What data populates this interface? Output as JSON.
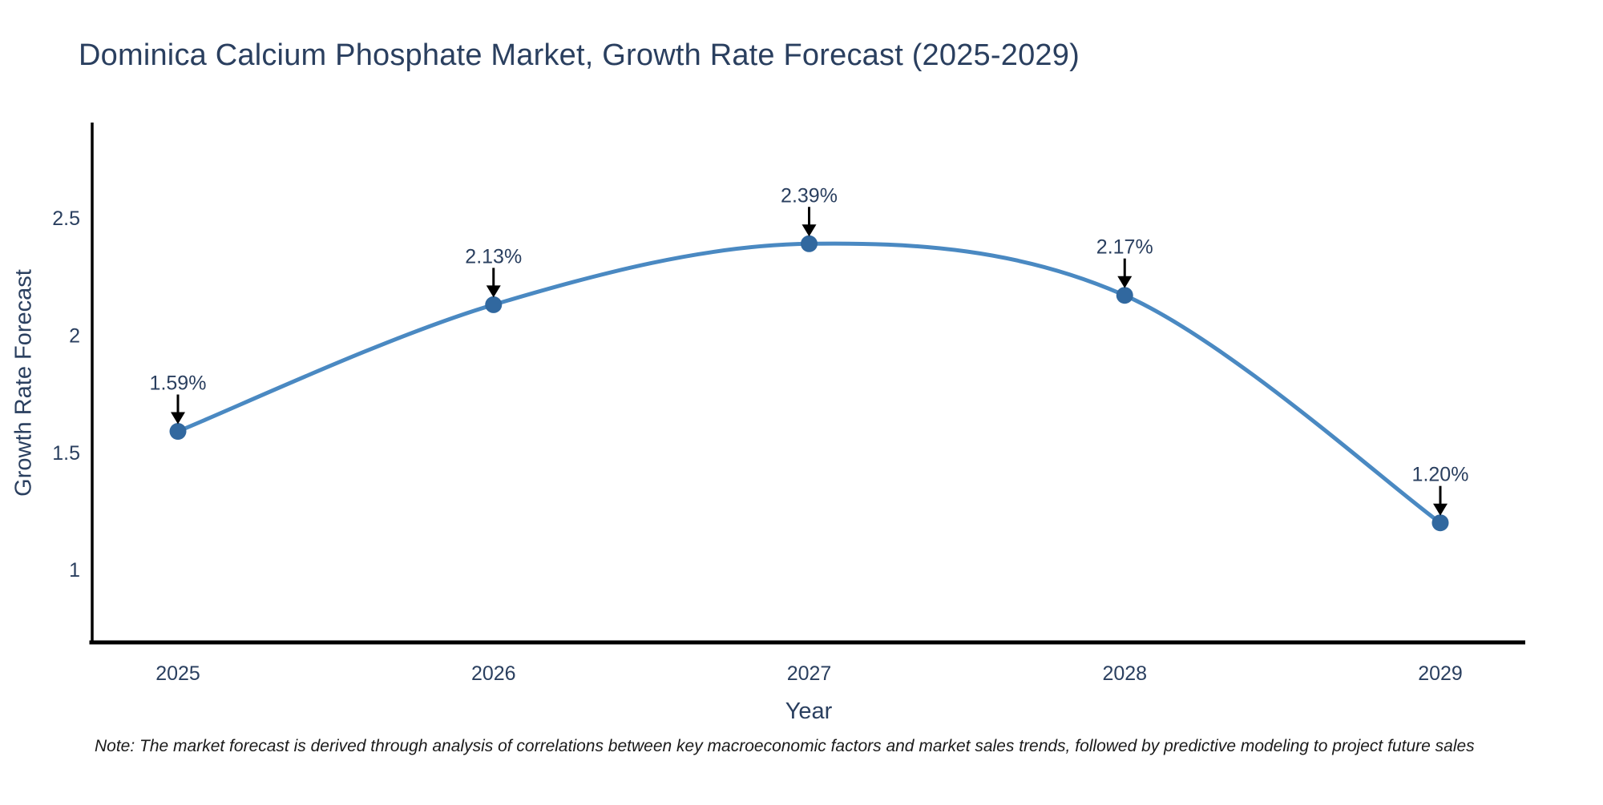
{
  "note": "Note: The market forecast is derived through analysis of correlations between key macroeconomic factors and market sales trends, followed by predictive modeling to project future sales",
  "chart_data": {
    "type": "line",
    "line_shape": "spline",
    "title": "Dominica Calcium Phosphate Market, Growth Rate Forecast (2025-2029)",
    "xlabel": "Year",
    "ylabel": "Growth Rate Forecast",
    "categories": [
      "2025",
      "2026",
      "2027",
      "2028",
      "2029"
    ],
    "values": [
      1.59,
      2.13,
      2.39,
      2.17,
      1.2
    ],
    "point_labels": [
      "1.59%",
      "2.13%",
      "2.39%",
      "2.17%",
      "1.20%"
    ],
    "ytick_values": [
      2.5,
      2.0,
      1.5,
      1.0
    ],
    "ytick_labels": [
      "2.5",
      "2",
      "1.5",
      "1"
    ],
    "ylim": [
      0.69,
      2.9
    ],
    "grid": false,
    "legend": false,
    "annotation_style": "black downward arrow from data label to marker",
    "colors": {
      "line": "#4a89c2",
      "marker": "#31689f",
      "arrow": "#000000",
      "axis_line": "#000000",
      "title_text": "#2a3f5f",
      "tick_text": "#2a3f5f",
      "note_text": "#1a1a1a",
      "background": "#ffffff"
    }
  }
}
